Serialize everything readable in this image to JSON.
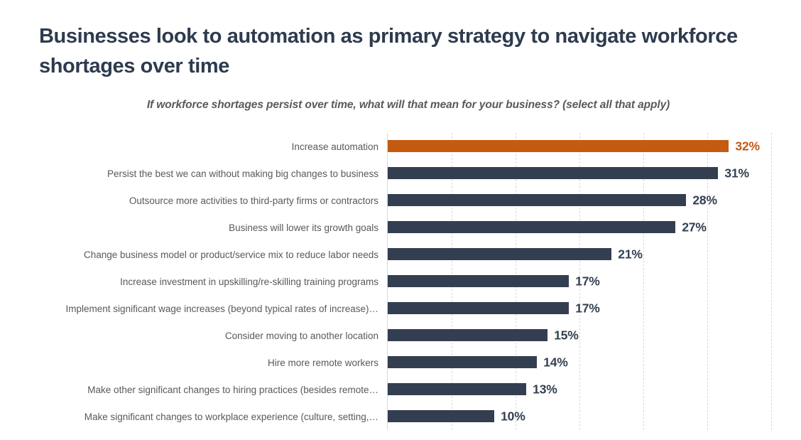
{
  "title": {
    "text": "Businesses look to automation as primary strategy to navigate workforce shortages over time"
  },
  "subtitle": {
    "text": "If workforce shortages persist over time, what will that mean for your business? (select all that apply)"
  },
  "chart_data": {
    "type": "bar",
    "orientation": "horizontal",
    "title": "Businesses look to automation as primary strategy to navigate workforce shortages over time",
    "subtitle": "If workforce shortages persist over time, what will that mean for your business? (select all that apply)",
    "categories": [
      "Increase automation",
      "Persist the best we can without making big changes to business",
      "Outsource more activities to third-party firms or contractors",
      "Business will lower its growth goals",
      "Change business model or product/service mix to reduce labor needs",
      "Increase investment in upskilling/re-skilling training programs",
      "Implement significant wage increases (beyond typical rates of increase)…",
      "Consider moving to another location",
      "Hire more remote workers",
      "Make other significant changes to hiring practices (besides remote…",
      "Make significant changes to workplace experience (culture, setting,…"
    ],
    "values": [
      32,
      31,
      28,
      27,
      21,
      17,
      17,
      15,
      14,
      13,
      10
    ],
    "value_labels": [
      "32%",
      "31%",
      "28%",
      "27%",
      "21%",
      "17%",
      "17%",
      "15%",
      "14%",
      "13%",
      "10%"
    ],
    "highlight_index": 0,
    "xlim": [
      0,
      37.3
    ],
    "gridline_interval": 6,
    "grid": "vertical dashed gridlines",
    "legend_position": "none",
    "axis_tick_labels": "none (data labels shown at bar ends)",
    "colors": {
      "highlight_bar": "#C55A11",
      "default_bar": "#333F50",
      "highlight_value_label": "#C55A11",
      "default_value_label": "#333F50",
      "category_label": "#595959",
      "title": "#2E3B4E",
      "subtitle": "#595959",
      "gridline": "#D9D9D9",
      "axis_line": "#D9D9D9",
      "background": "#FFFFFF"
    }
  }
}
